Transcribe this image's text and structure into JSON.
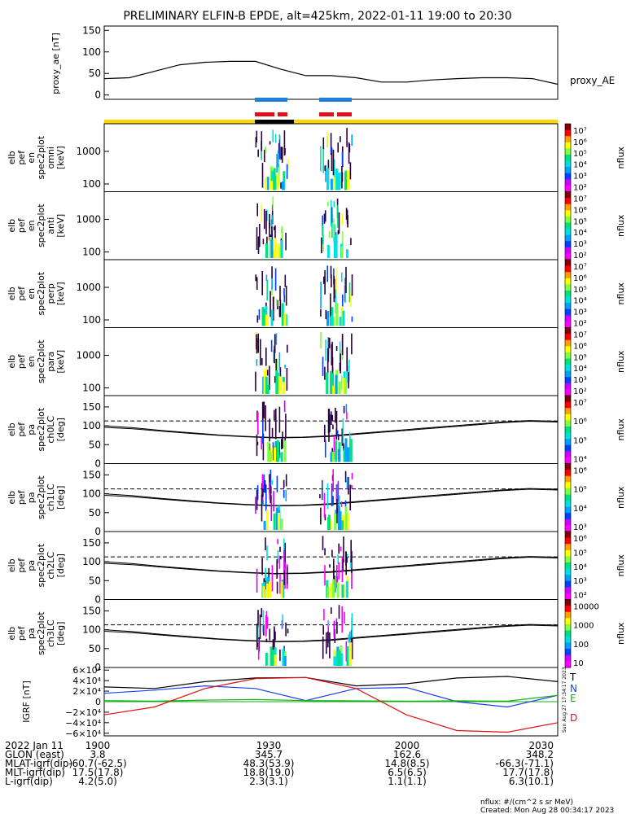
{
  "title": "PRELIMINARY ELFIN-B EPDE, alt=425km, 2022-01-11 19:00 to 20:30",
  "colors": {
    "bar_yellow": "#ffd700",
    "bar_black": "#000000",
    "bar_blue": "#1e7fd8",
    "bar_red": "#e0101a",
    "B_T": "#000000",
    "B_N": "#1a3ff0",
    "B_E": "#10b010",
    "B_D": "#e01010"
  },
  "chart_data": [
    {
      "type": "line",
      "panel": "proxy_ae",
      "ylabel": "proxy_ae [nT]",
      "series_label": "proxy_AE",
      "ylim": [
        -10,
        160
      ],
      "yticks": [
        "150",
        "100",
        "50",
        "0"
      ],
      "x_minutes": [
        0,
        5,
        10,
        15,
        20,
        25,
        30,
        35,
        40,
        45,
        50,
        55,
        60,
        65,
        70,
        75,
        80,
        85,
        90
      ],
      "values": [
        38,
        40,
        55,
        70,
        76,
        78,
        78,
        60,
        45,
        45,
        40,
        30,
        30,
        35,
        38,
        40,
        40,
        38,
        25
      ]
    },
    {
      "type": "heatmap",
      "panels": [
        {
          "label": [
            "elb",
            "pef",
            "en",
            "spec2plot",
            "omni",
            "[keV]"
          ],
          "yticks": [
            "1000",
            "100"
          ],
          "cb_ticks": [
            "10⁷",
            "10⁶",
            "10⁵",
            "10⁴",
            "10³",
            "10²"
          ],
          "cb_label": "nflux"
        },
        {
          "label": [
            "elb",
            "pef",
            "en",
            "spec2plot",
            "anti",
            "[keV]"
          ],
          "yticks": [
            "1000",
            "100"
          ],
          "cb_ticks": [
            "10⁷",
            "10⁶",
            "10⁵",
            "10⁴",
            "10³",
            "10²"
          ],
          "cb_label": "nflux"
        },
        {
          "label": [
            "elb",
            "pef",
            "en",
            "spec2plot",
            "perp",
            "[keV]"
          ],
          "yticks": [
            "1000",
            "100"
          ],
          "cb_ticks": [
            "10⁷",
            "10⁶",
            "10⁵",
            "10⁴",
            "10³",
            "10²"
          ],
          "cb_label": "nflux"
        },
        {
          "label": [
            "elb",
            "pef",
            "en",
            "spec2plot",
            "para",
            "[keV]"
          ],
          "yticks": [
            "1000",
            "100"
          ],
          "cb_ticks": [
            "10⁷",
            "10⁶",
            "10⁵",
            "10⁴",
            "10³",
            "10²"
          ],
          "cb_label": "nflux"
        },
        {
          "label": [
            "elb",
            "pef",
            "pa",
            "spec2plot",
            "ch0LC",
            "[deg]"
          ],
          "yticks": [
            "150",
            "100",
            "50",
            "0"
          ],
          "cb_ticks": [
            "10⁷",
            "10⁶",
            "10⁵",
            "10⁴"
          ],
          "cb_label": "nflux"
        },
        {
          "label": [
            "elb",
            "pef",
            "pa",
            "spec2plot",
            "ch1LC",
            "[deg]"
          ],
          "yticks": [
            "150",
            "100",
            "50",
            "0"
          ],
          "cb_ticks": [
            "10⁶",
            "10⁵",
            "10⁴",
            "10³"
          ],
          "cb_label": "nflux"
        },
        {
          "label": [
            "elb",
            "pef",
            "pa",
            "spec2plot",
            "ch2LC",
            "[deg]"
          ],
          "yticks": [
            "150",
            "100",
            "50",
            "0"
          ],
          "cb_ticks": [
            "10⁶",
            "10⁵",
            "10⁴",
            "10³",
            "10²"
          ],
          "cb_label": "nflux"
        },
        {
          "label": [
            "elb",
            "pef",
            "pa",
            "spec2plot",
            "ch3LC",
            "[deg]"
          ],
          "yticks": [
            "150",
            "100",
            "50",
            "0"
          ],
          "cb_ticks": [
            "10000",
            "1000",
            "100",
            "10"
          ],
          "cb_label": "nflux"
        }
      ],
      "pitch_angle_lines": {
        "solid_upper": [
          100,
          95,
          88,
          82,
          76,
          72,
          69,
          70,
          74,
          80,
          86,
          92,
          98,
          104,
          110,
          114,
          112
        ],
        "solid_lower": [
          96,
          92,
          86,
          80,
          75,
          71,
          68,
          69,
          72,
          78,
          84,
          90,
          96,
          102,
          108,
          112,
          110
        ],
        "dashed": [
          113,
          113,
          113,
          113,
          113,
          113,
          113,
          113,
          113,
          113,
          113,
          113,
          113,
          113,
          113,
          113,
          113
        ]
      }
    },
    {
      "type": "line",
      "panel": "IGRF",
      "ylabel": "IGRF [nT]",
      "ylim": [
        -65000,
        65000
      ],
      "yticks": [
        "6×10⁴",
        "4×10⁴",
        "2×10⁴",
        "0",
        "−2×10⁴",
        "−4×10⁴",
        "−6×10⁴"
      ],
      "x_minutes": [
        0,
        10,
        20,
        30,
        40,
        50,
        60,
        70,
        80,
        90
      ],
      "series": [
        {
          "name": "T",
          "values": [
            28000,
            25000,
            38000,
            45000,
            46000,
            30000,
            34000,
            45000,
            48000,
            38000
          ]
        },
        {
          "name": "N",
          "values": [
            16000,
            22000,
            30000,
            25000,
            2000,
            25000,
            27000,
            0,
            -10000,
            12000
          ]
        },
        {
          "name": "E",
          "values": [
            2000,
            1000,
            3000,
            4000,
            2000,
            1500,
            1000,
            1500,
            1000,
            12000
          ]
        },
        {
          "name": "D",
          "values": [
            -25000,
            -10000,
            25000,
            44000,
            46000,
            25000,
            -25000,
            -55000,
            -58000,
            -40000
          ]
        }
      ]
    }
  ],
  "side_text": {
    "date_stamp": "Sun Aug 27 17:34:17 2023",
    "nflux_units": "nflux: #/(cm^2 s sr MeV)",
    "created": "Created: Mon Aug 28 00:34:17 2023"
  },
  "ephemeris": {
    "rows": [
      {
        "label": "2022 Jan 11",
        "values": [
          "1900",
          "1930",
          "2000",
          "2030"
        ]
      },
      {
        "label": "GLON (east)",
        "values": [
          "3.8",
          "345.7",
          "162.6",
          "348.2"
        ]
      },
      {
        "label": "MLAT-igrf(dip)",
        "values": [
          "-60.7(-62.5)",
          "48.3(53.9)",
          "14.8(8.5)",
          "-66.3(-71.1)"
        ]
      },
      {
        "label": "MLT-igrf(dip)",
        "values": [
          "17.5(17.8)",
          "18.8(19.0)",
          "6.5(6.5)",
          "17.7(17.8)"
        ]
      },
      {
        "label": "L-igrf(dip)",
        "values": [
          "4.2(5.0)",
          "2.3(3.1)",
          "1.1(1.1)",
          "6.3(10.1)"
        ]
      }
    ]
  }
}
